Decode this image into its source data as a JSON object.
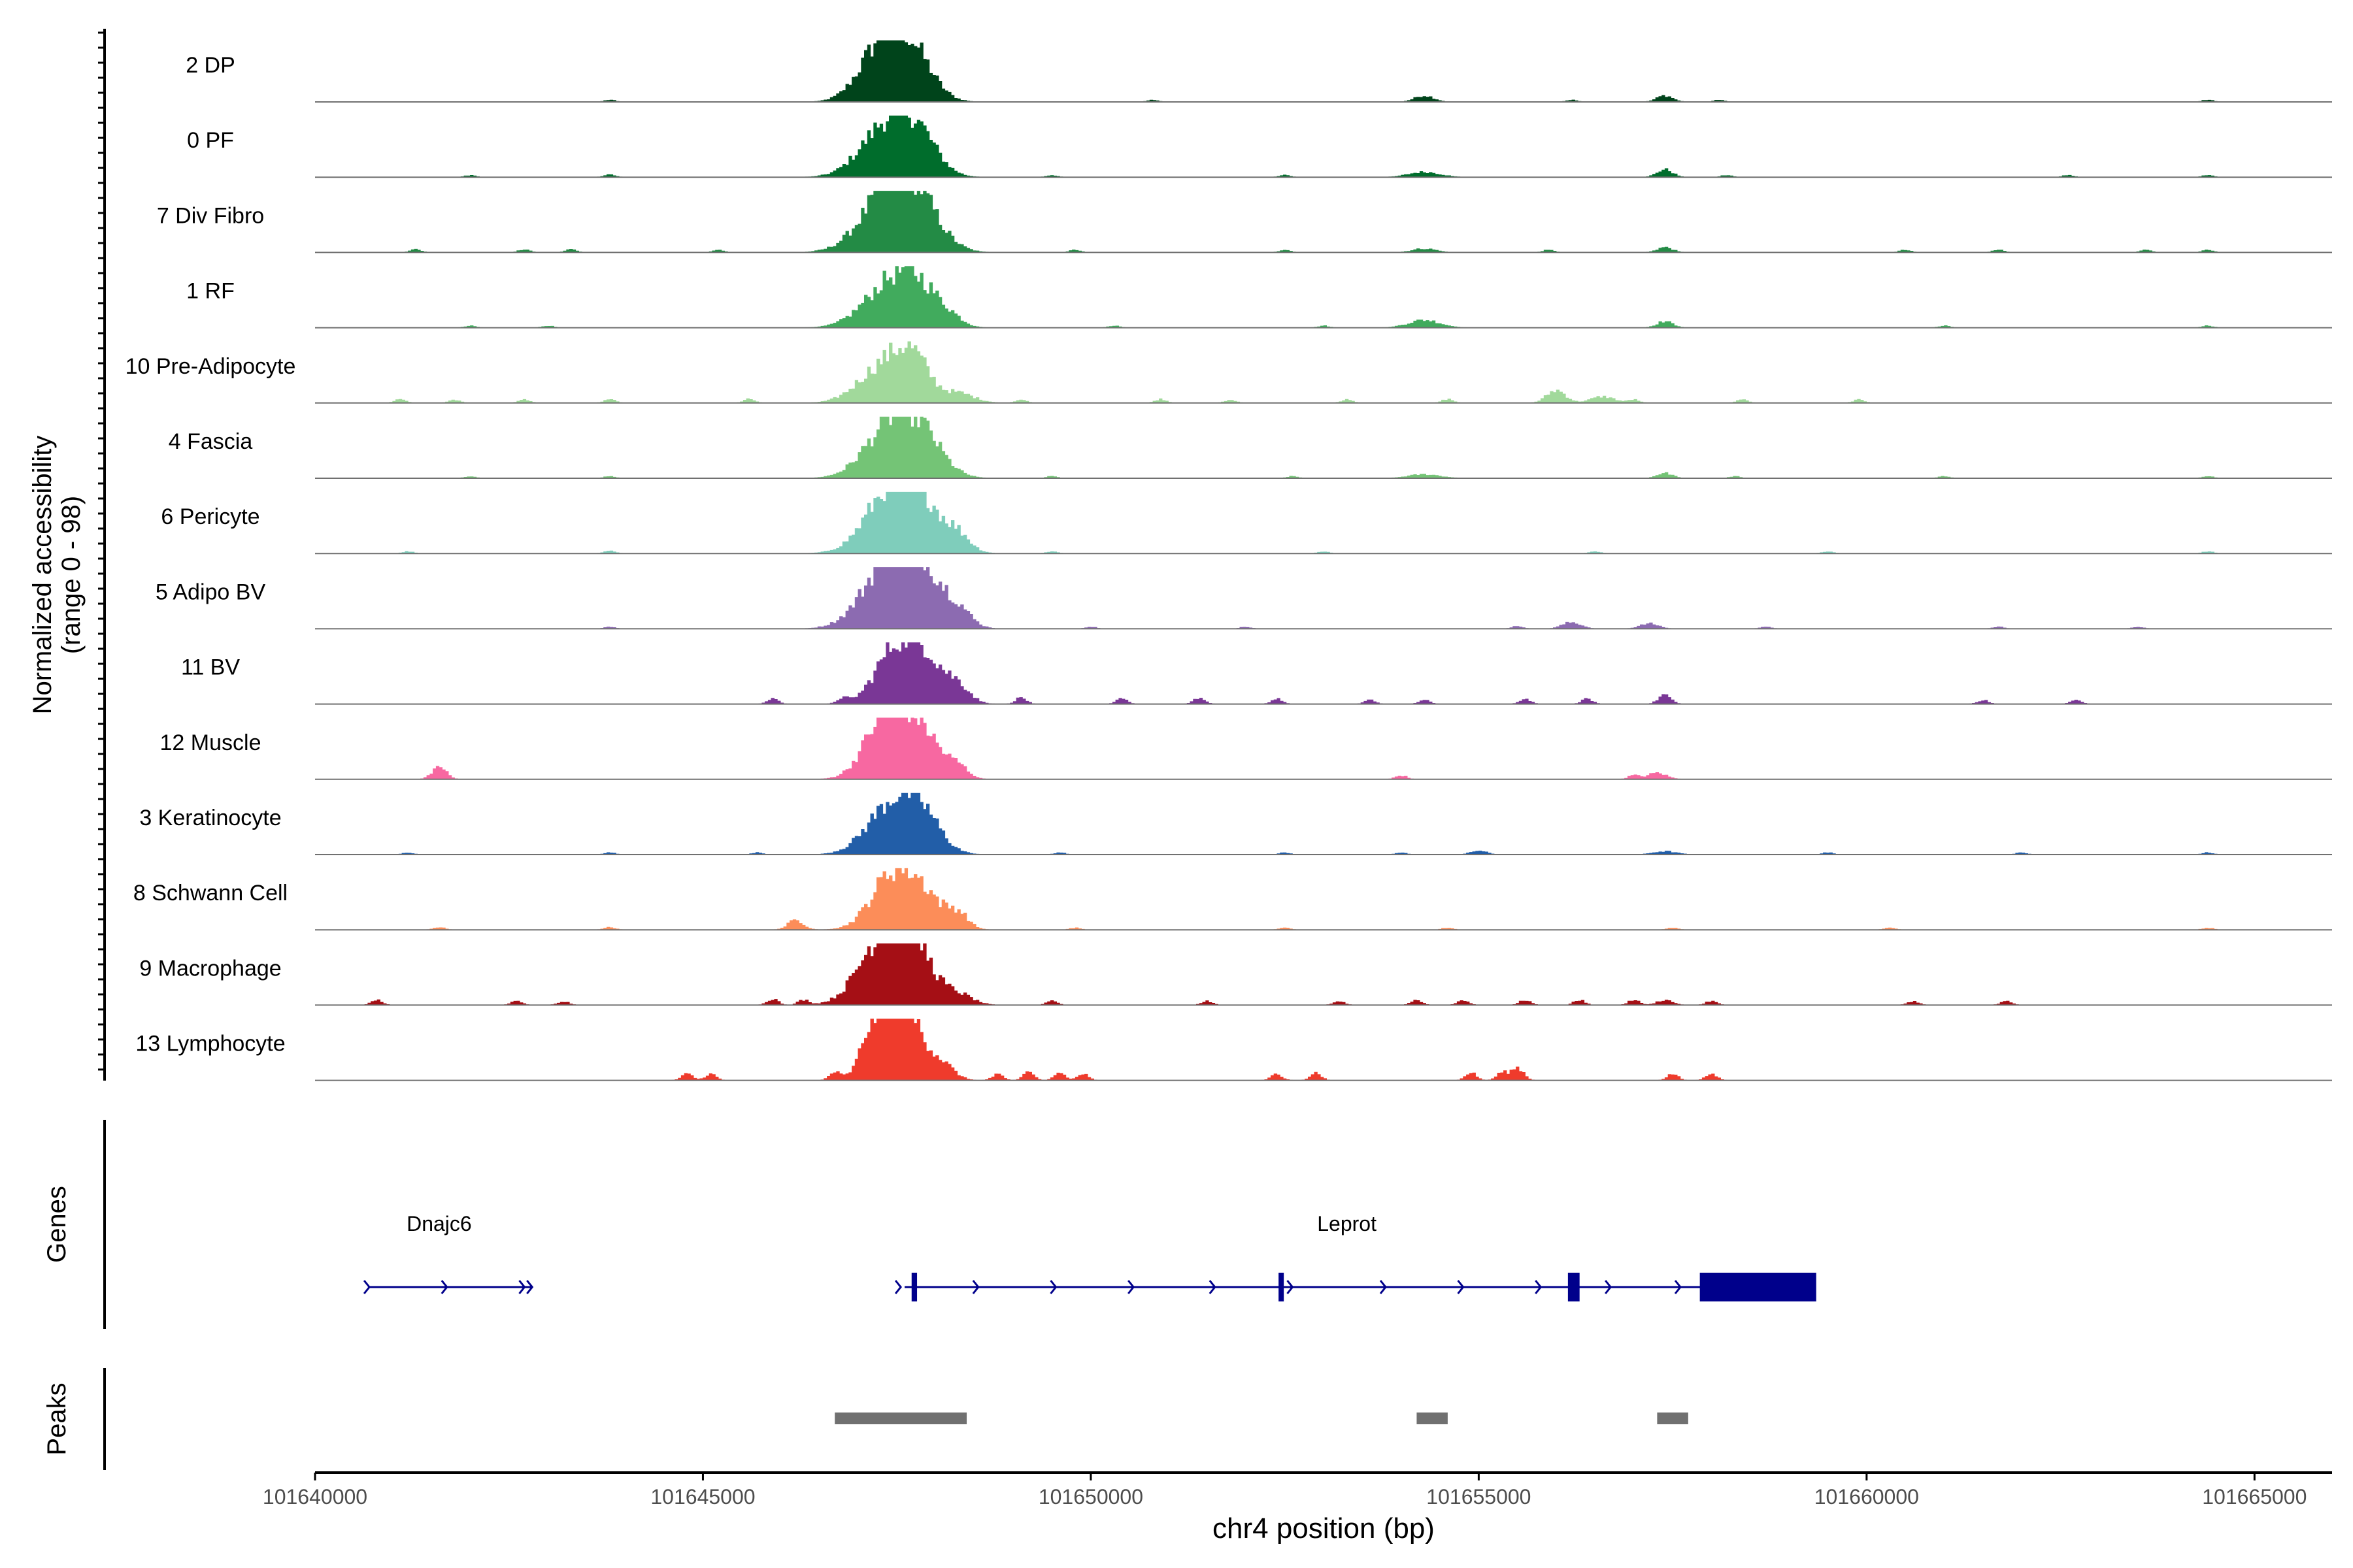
{
  "chart_data": {
    "type": "area",
    "title": "",
    "chromosome": "chr4",
    "xlabel": "chr4 position (bp)",
    "ylabel_line1": "Normalized accessibility",
    "ylabel_line2": "(range 0 - 98)",
    "xlim": [
      101640000,
      101666000
    ],
    "ylim": [
      0,
      98
    ],
    "x_ticks": [
      {
        "value": 101640000,
        "label": "101640000"
      },
      {
        "value": 101645000,
        "label": "101645000"
      },
      {
        "value": 101650000,
        "label": "101650000"
      },
      {
        "value": 101655000,
        "label": "101655000"
      },
      {
        "value": 101660000,
        "label": "101660000"
      },
      {
        "value": 101665000,
        "label": "101665000"
      }
    ],
    "tracks": [
      {
        "name": "2 DP",
        "color": "#00441b",
        "peaks": [
          [
            101647300,
            85,
            280
          ],
          [
            101647700,
            70,
            260
          ],
          [
            101654300,
            10,
            120
          ],
          [
            101657400,
            10,
            100
          ]
        ],
        "noise": [
          [
            101643800,
            3
          ],
          [
            101650800,
            3
          ],
          [
            101656200,
            3
          ],
          [
            101658100,
            3
          ],
          [
            101664400,
            3
          ]
        ]
      },
      {
        "name": "0 PF",
        "color": "#006d2c",
        "peaks": [
          [
            101647350,
            75,
            320
          ],
          [
            101647750,
            60,
            260
          ],
          [
            101654300,
            8,
            200
          ],
          [
            101657400,
            12,
            100
          ]
        ],
        "noise": [
          [
            101642000,
            3
          ],
          [
            101643800,
            4
          ],
          [
            101649500,
            3
          ],
          [
            101652500,
            3
          ],
          [
            101658200,
            3
          ],
          [
            101662600,
            3
          ],
          [
            101664400,
            3
          ]
        ]
      },
      {
        "name": "7 Div Fibro",
        "color": "#238b45",
        "peaks": [
          [
            101647400,
            90,
            350
          ],
          [
            101647750,
            60,
            300
          ],
          [
            101654300,
            6,
            150
          ],
          [
            101657400,
            8,
            100
          ]
        ],
        "noise": [
          [
            101641300,
            5
          ],
          [
            101642700,
            5
          ],
          [
            101643300,
            5
          ],
          [
            101645200,
            4
          ],
          [
            101649800,
            4
          ],
          [
            101652500,
            4
          ],
          [
            101655900,
            4
          ],
          [
            101660500,
            4
          ],
          [
            101661700,
            4
          ],
          [
            101663600,
            4
          ],
          [
            101664400,
            4
          ]
        ]
      },
      {
        "name": "1 RF",
        "color": "#41ab5d",
        "peaks": [
          [
            101647400,
            65,
            330
          ],
          [
            101647800,
            50,
            260
          ],
          [
            101648200,
            10,
            150
          ],
          [
            101654300,
            12,
            200
          ],
          [
            101657400,
            10,
            100
          ]
        ],
        "noise": [
          [
            101642000,
            3
          ],
          [
            101643000,
            3
          ],
          [
            101650300,
            3
          ],
          [
            101653000,
            3
          ],
          [
            101661000,
            3
          ],
          [
            101664400,
            3
          ]
        ]
      },
      {
        "name": "10 Pre-Adipocyte",
        "color": "#a1d99b",
        "peaks": [
          [
            101647300,
            55,
            300
          ],
          [
            101647700,
            65,
            220
          ],
          [
            101648300,
            15,
            200
          ],
          [
            101656000,
            20,
            120
          ],
          [
            101656600,
            10,
            150
          ]
        ],
        "noise": [
          [
            101641100,
            6
          ],
          [
            101641800,
            5
          ],
          [
            101642700,
            5
          ],
          [
            101643800,
            6
          ],
          [
            101645600,
            6
          ],
          [
            101649100,
            5
          ],
          [
            101650900,
            6
          ],
          [
            101651800,
            5
          ],
          [
            101653300,
            5
          ],
          [
            101654600,
            6
          ],
          [
            101657000,
            5
          ],
          [
            101658400,
            5
          ],
          [
            101659900,
            5
          ]
        ]
      },
      {
        "name": "4 Fascia",
        "color": "#74c476",
        "peaks": [
          [
            101647400,
            75,
            320
          ],
          [
            101647800,
            60,
            280
          ],
          [
            101654300,
            6,
            200
          ],
          [
            101657400,
            8,
            100
          ]
        ],
        "noise": [
          [
            101642000,
            3
          ],
          [
            101643800,
            3
          ],
          [
            101649500,
            3
          ],
          [
            101652600,
            3
          ],
          [
            101658300,
            3
          ],
          [
            101661000,
            3
          ],
          [
            101664400,
            3
          ]
        ]
      },
      {
        "name": "6 Pericyte",
        "color": "#7fcdbb",
        "peaks": [
          [
            101647400,
            85,
            320
          ],
          [
            101647800,
            70,
            300
          ],
          [
            101648300,
            20,
            150
          ]
        ],
        "noise": [
          [
            101641200,
            3
          ],
          [
            101643800,
            4
          ],
          [
            101649500,
            3
          ],
          [
            101653000,
            3
          ],
          [
            101656500,
            3
          ],
          [
            101659500,
            3
          ],
          [
            101664400,
            3
          ]
        ]
      },
      {
        "name": "5 Adipo BV",
        "color": "#8c6bb1",
        "peaks": [
          [
            101647400,
            95,
            340
          ],
          [
            101647800,
            80,
            300
          ],
          [
            101648300,
            20,
            160
          ],
          [
            101656200,
            10,
            120
          ],
          [
            101657200,
            8,
            120
          ]
        ],
        "noise": [
          [
            101643800,
            3
          ],
          [
            101650000,
            3
          ],
          [
            101652000,
            3
          ],
          [
            101655500,
            4
          ],
          [
            101658700,
            3
          ],
          [
            101661700,
            3
          ],
          [
            101663500,
            3
          ]
        ]
      },
      {
        "name": "11 BV",
        "color": "#7a3796",
        "peaks": [
          [
            101647500,
            90,
            260
          ],
          [
            101647900,
            60,
            220
          ],
          [
            101648300,
            25,
            150
          ],
          [
            101657400,
            15,
            80
          ]
        ],
        "noise": [
          [
            101645900,
            8
          ],
          [
            101646800,
            8
          ],
          [
            101649100,
            10
          ],
          [
            101650400,
            8
          ],
          [
            101651400,
            10
          ],
          [
            101652400,
            8
          ],
          [
            101653600,
            6
          ],
          [
            101654300,
            6
          ],
          [
            101655600,
            8
          ],
          [
            101656400,
            8
          ],
          [
            101661500,
            6
          ],
          [
            101662700,
            6
          ]
        ]
      },
      {
        "name": "12 Muscle",
        "color": "#f768a1",
        "peaks": [
          [
            101647350,
            95,
            260
          ],
          [
            101647800,
            75,
            260
          ],
          [
            101648300,
            15,
            120
          ],
          [
            101641600,
            20,
            90
          ],
          [
            101657300,
            10,
            120
          ]
        ],
        "noise": [
          [
            101654000,
            6
          ],
          [
            101657000,
            6
          ]
        ]
      },
      {
        "name": "3 Keratinocyte",
        "color": "#225ea8",
        "peaks": [
          [
            101647400,
            70,
            300
          ],
          [
            101647800,
            60,
            250
          ],
          [
            101655000,
            6,
            100
          ],
          [
            101657400,
            5,
            150
          ]
        ],
        "noise": [
          [
            101641200,
            3
          ],
          [
            101643800,
            3
          ],
          [
            101645700,
            3
          ],
          [
            101649600,
            3
          ],
          [
            101652500,
            3
          ],
          [
            101654000,
            3
          ],
          [
            101659500,
            3
          ],
          [
            101662000,
            3
          ],
          [
            101664400,
            3
          ]
        ]
      },
      {
        "name": "8 Schwann Cell",
        "color": "#fc8d59",
        "peaks": [
          [
            101647400,
            70,
            260
          ],
          [
            101647800,
            60,
            280
          ],
          [
            101648300,
            20,
            120
          ],
          [
            101646200,
            15,
            100
          ]
        ],
        "noise": [
          [
            101641600,
            4
          ],
          [
            101643800,
            4
          ],
          [
            101649800,
            3
          ],
          [
            101652500,
            3
          ],
          [
            101654600,
            3
          ],
          [
            101657500,
            3
          ],
          [
            101660300,
            3
          ],
          [
            101664400,
            3
          ]
        ]
      },
      {
        "name": "9 Macrophage",
        "color": "#a50f15",
        "peaks": [
          [
            101647300,
            95,
            300
          ],
          [
            101647700,
            85,
            260
          ],
          [
            101648300,
            15,
            180
          ],
          [
            101657400,
            8,
            100
          ]
        ],
        "noise": [
          [
            101640800,
            8
          ],
          [
            101642600,
            6
          ],
          [
            101643200,
            6
          ],
          [
            101645900,
            10
          ],
          [
            101646300,
            8
          ],
          [
            101649500,
            6
          ],
          [
            101651500,
            6
          ],
          [
            101653200,
            6
          ],
          [
            101654200,
            8
          ],
          [
            101654800,
            8
          ],
          [
            101655600,
            8
          ],
          [
            101656300,
            8
          ],
          [
            101657000,
            8
          ],
          [
            101658000,
            6
          ],
          [
            101660600,
            6
          ],
          [
            101661800,
            6
          ]
        ]
      },
      {
        "name": "13 Lymphocyte",
        "color": "#ef3b2c",
        "peaks": [
          [
            101647300,
            95,
            200
          ],
          [
            101647650,
            95,
            220
          ],
          [
            101648100,
            20,
            150
          ],
          [
            101655500,
            20,
            80
          ]
        ],
        "noise": [
          [
            101644800,
            10
          ],
          [
            101645100,
            10
          ],
          [
            101646700,
            12
          ],
          [
            101647100,
            14
          ],
          [
            101648800,
            10
          ],
          [
            101649200,
            12
          ],
          [
            101649600,
            12
          ],
          [
            101649900,
            10
          ],
          [
            101652400,
            10
          ],
          [
            101652900,
            12
          ],
          [
            101654900,
            12
          ],
          [
            101655300,
            12
          ],
          [
            101657500,
            10
          ],
          [
            101658000,
            10
          ]
        ]
      }
    ],
    "genes_label": "Genes",
    "genes": [
      {
        "name": "Dnajc6",
        "start": 101640700,
        "end": 101642800,
        "strand": "+",
        "exons": [],
        "label_x": 101641600,
        "arrow_positions": [
          101640700,
          101641700,
          101642700,
          101642800
        ]
      },
      {
        "name": "Leprot",
        "start": 101647600,
        "end": 101659300,
        "strand": "+",
        "exons": [
          [
            101647690,
            101647760
          ],
          [
            101652420,
            101652470
          ],
          [
            101656150,
            101656300
          ],
          [
            101657850,
            101659350
          ]
        ],
        "label_x": 101653300,
        "arrow_positions": [
          101647550,
          101648550,
          101649550,
          101650550,
          101651600,
          101652600,
          101653800,
          101654800,
          101655800,
          101656700,
          101657600
        ]
      }
    ],
    "peaks_label": "Peaks",
    "peak_regions": [
      {
        "start": 101646700,
        "end": 101648400
      },
      {
        "start": 101654200,
        "end": 101654600
      },
      {
        "start": 101657300,
        "end": 101657700
      }
    ],
    "colors": {
      "gene": "#00008b",
      "peak_region": "#707070",
      "baseline": "#707070",
      "axis": "#000000"
    }
  }
}
